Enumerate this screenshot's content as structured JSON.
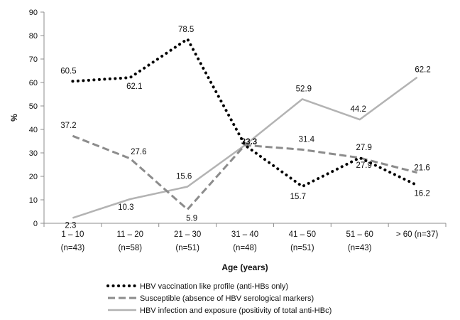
{
  "chart_data": {
    "type": "line",
    "title": "",
    "xlabel": "Age (years)",
    "ylabel": "%",
    "ylim": [
      0,
      90
    ],
    "yticks": [
      0,
      10,
      20,
      30,
      40,
      50,
      60,
      70,
      80,
      90
    ],
    "grid": false,
    "legend_position": "bottom",
    "categories": [
      {
        "line1": "1 – 10",
        "line2": "(n=43)"
      },
      {
        "line1": "11 – 20",
        "line2": "(n=58)"
      },
      {
        "line1": "21 – 30",
        "line2": "(n=51)"
      },
      {
        "line1": "31 – 40",
        "line2": "(n=48)"
      },
      {
        "line1": "41 – 50",
        "line2": "(n=51)"
      },
      {
        "line1": "51 – 60",
        "line2": "(n=43)"
      },
      {
        "line1": "> 60 (n=37)",
        "line2": ""
      }
    ],
    "series": [
      {
        "name": "HBV vaccination like profile (anti-HBs only)",
        "style": "dotted",
        "color": "#000000",
        "values": [
          60.5,
          62.1,
          78.5,
          33.3,
          15.7,
          27.9,
          16.2
        ],
        "labels": [
          "60.5",
          "62.1",
          "78.5",
          "33.3",
          "15.7",
          "27.9",
          "16.2"
        ]
      },
      {
        "name": "Susceptible (absence of HBV serological markers)",
        "style": "dashed",
        "color": "#8c8c8c",
        "values": [
          37.2,
          27.6,
          5.9,
          33.3,
          31.4,
          27.9,
          21.6
        ],
        "labels": [
          "37.2",
          "27.6",
          "5.9",
          "",
          "31.4",
          "27.9",
          "21.6"
        ]
      },
      {
        "name": "HBV infection and exposure (positivity of total anti-HBc)",
        "style": "solid",
        "color": "#b3b3b3",
        "values": [
          2.3,
          10.3,
          15.6,
          33.3,
          52.9,
          44.2,
          62.2
        ],
        "labels": [
          "2.3",
          "10.3",
          "15.6",
          "",
          "52.9",
          "44.2",
          "62.2"
        ]
      }
    ]
  }
}
